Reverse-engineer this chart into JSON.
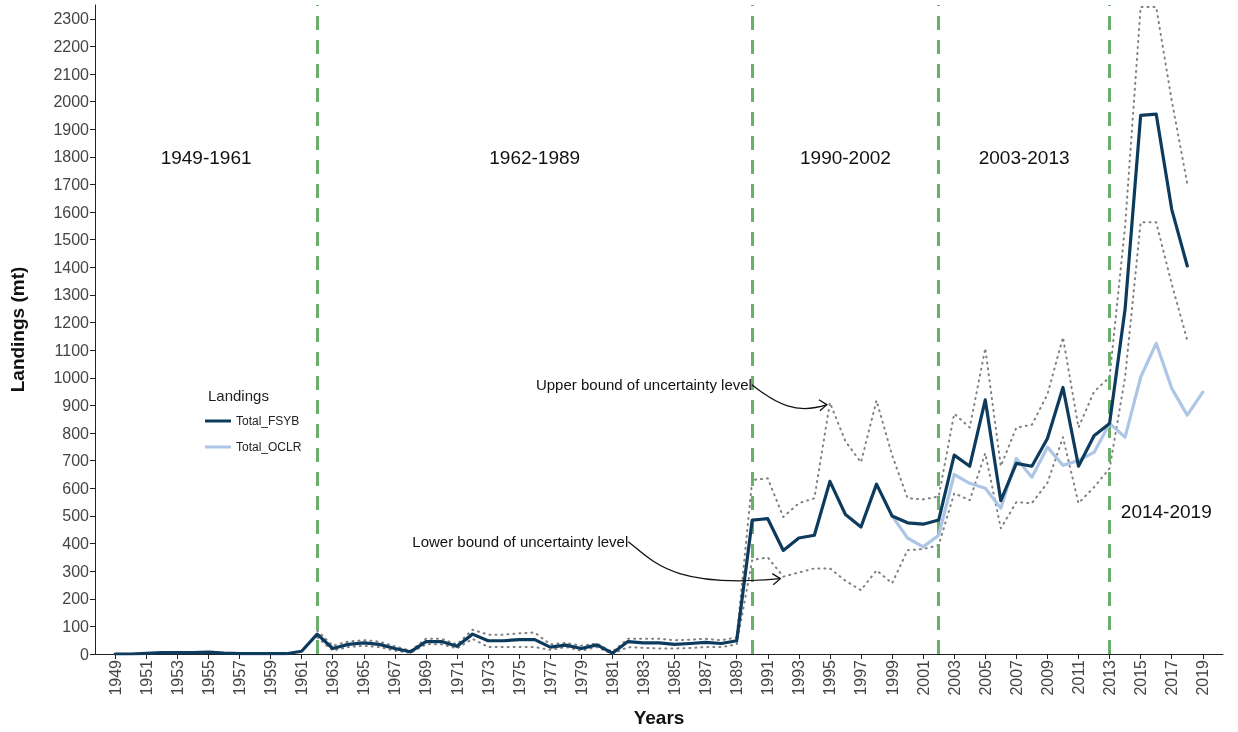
{
  "chart_data": {
    "type": "line",
    "xlabel": "Years",
    "ylabel": "Landings (mt)",
    "legend_title": "Landings",
    "x": [
      1949,
      1950,
      1951,
      1952,
      1953,
      1954,
      1955,
      1956,
      1957,
      1958,
      1959,
      1960,
      1961,
      1962,
      1963,
      1964,
      1965,
      1966,
      1967,
      1968,
      1969,
      1970,
      1971,
      1972,
      1973,
      1974,
      1975,
      1976,
      1977,
      1978,
      1979,
      1980,
      1981,
      1982,
      1983,
      1984,
      1985,
      1986,
      1987,
      1988,
      1989,
      1990,
      1991,
      1992,
      1993,
      1994,
      1995,
      1996,
      1997,
      1998,
      1999,
      2000,
      2001,
      2002,
      2003,
      2004,
      2005,
      2006,
      2007,
      2008,
      2009,
      2010,
      2011,
      2012,
      2013,
      2014,
      2015,
      2016,
      2017,
      2018
    ],
    "series": [
      {
        "name": "Total_FSYB",
        "color": "#0d3b5e",
        "line_style": "solid",
        "values": [
          0,
          0,
          2,
          5,
          5,
          5,
          7,
          3,
          1,
          1,
          1,
          1,
          10,
          72,
          20,
          35,
          40,
          35,
          20,
          8,
          45,
          45,
          28,
          72,
          48,
          48,
          52,
          52,
          25,
          32,
          20,
          33,
          3,
          45,
          40,
          40,
          35,
          38,
          42,
          38,
          48,
          485,
          490,
          375,
          420,
          430,
          625,
          505,
          460,
          615,
          500,
          475,
          470,
          485,
          720,
          680,
          920,
          555,
          690,
          680,
          780,
          965,
          680,
          790,
          835,
          1250,
          1950,
          1955,
          1610,
          1405
        ]
      },
      {
        "name": "Total_OCLR",
        "color": "#adc6e5",
        "line_style": "solid",
        "x": [
          1999,
          2000,
          2001,
          2002,
          2003,
          2004,
          2005,
          2006,
          2007,
          2008,
          2009,
          2010,
          2011,
          2012,
          2013,
          2014,
          2015,
          2016,
          2017,
          2018,
          2019
        ],
        "values": [
          500,
          420,
          388,
          430,
          650,
          618,
          600,
          528,
          708,
          640,
          749,
          683,
          701,
          730,
          835,
          785,
          1002,
          1125,
          962,
          865,
          948
        ]
      },
      {
        "color": "#7f7f7f",
        "line_style": "dotted",
        "x": [
          1962,
          1963,
          1964,
          1965,
          1966,
          1967,
          1968,
          1969,
          1970,
          1971,
          1972,
          1973,
          1974,
          1975,
          1976,
          1977,
          1978,
          1979,
          1980,
          1981,
          1982,
          1983,
          1984,
          1985,
          1986,
          1987,
          1988,
          1989,
          1990,
          1991,
          1992,
          1993,
          1994,
          1995,
          1996,
          1997,
          1998,
          1999,
          2000,
          2001,
          2002,
          2003,
          2004,
          2005,
          2006,
          2007,
          2008,
          2009,
          2010,
          2011,
          2012,
          2013,
          2014,
          2015,
          2016,
          2017,
          2018
        ],
        "values": [
          85,
          30,
          45,
          50,
          45,
          28,
          12,
          55,
          55,
          35,
          88,
          70,
          70,
          75,
          78,
          35,
          40,
          30,
          38,
          8,
          55,
          55,
          55,
          50,
          52,
          55,
          50,
          60,
          630,
          636,
          496,
          546,
          564,
          910,
          770,
          694,
          918,
          720,
          564,
          560,
          570,
          870,
          820,
          1107,
          680,
          820,
          830,
          940,
          1147,
          820,
          950,
          1002,
          1550,
          2343,
          2343,
          2004,
          1703
        ]
      },
      {
        "color": "#7f7f7f",
        "line_style": "dotted",
        "x": [
          1962,
          1963,
          1964,
          1965,
          1966,
          1967,
          1968,
          1969,
          1970,
          1971,
          1972,
          1973,
          1974,
          1975,
          1976,
          1977,
          1978,
          1979,
          1980,
          1981,
          1982,
          1983,
          1984,
          1985,
          1986,
          1987,
          1988,
          1989,
          1990,
          1991,
          1992,
          1993,
          1994,
          1995,
          1996,
          1997,
          1998,
          1999,
          2000,
          2001,
          2002,
          2003,
          2004,
          2005,
          2006,
          2007,
          2008,
          2009,
          2010,
          2011,
          2012,
          2013,
          2014,
          2015,
          2016,
          2017,
          2018
        ],
        "values": [
          60,
          12,
          25,
          30,
          25,
          12,
          4,
          35,
          35,
          20,
          55,
          25,
          25,
          25,
          25,
          15,
          25,
          12,
          25,
          0,
          25,
          22,
          20,
          20,
          22,
          25,
          25,
          35,
          340,
          350,
          280,
          295,
          310,
          310,
          265,
          231,
          303,
          256,
          376,
          380,
          394,
          582,
          557,
          727,
          455,
          550,
          546,
          620,
          785,
          546,
          604,
          672,
          1003,
          1563,
          1563,
          1340,
          1136
        ]
      }
    ],
    "xlim": [
      1947.7,
      2020.3
    ],
    "xticks": [
      1949,
      1951,
      1953,
      1955,
      1957,
      1959,
      1961,
      1963,
      1965,
      1967,
      1969,
      1971,
      1973,
      1975,
      1977,
      1979,
      1981,
      1983,
      1985,
      1987,
      1989,
      1991,
      1993,
      1995,
      1997,
      1999,
      2001,
      2003,
      2005,
      2007,
      2009,
      2011,
      2013,
      2015,
      2017,
      2019
    ],
    "ylim": [
      0,
      2350
    ],
    "yticks": [
      0,
      100,
      200,
      300,
      400,
      500,
      600,
      700,
      800,
      900,
      1000,
      1100,
      1200,
      1300,
      1400,
      1500,
      1600,
      1700,
      1800,
      1900,
      2000,
      2100,
      2200,
      2300
    ],
    "ref_lines": [
      {
        "axis": "x",
        "value": 1962,
        "color": "#6aaf6a",
        "line_style": "dashed"
      },
      {
        "axis": "x",
        "value": 1990,
        "color": "#6aaf6a",
        "line_style": "dashed"
      },
      {
        "axis": "x",
        "value": 2002,
        "color": "#6aaf6a",
        "line_style": "dashed"
      },
      {
        "axis": "x",
        "value": 2013,
        "color": "#6aaf6a",
        "line_style": "dashed"
      }
    ],
    "annotations": [
      "1949-1961",
      "1962-1989",
      "1990-2002",
      "2003-2013",
      "2014-2019",
      {
        "text": "Upper bound of uncertainty level",
        "x": 1995,
        "y": 910
      },
      {
        "text": "Lower bound of uncertainty level",
        "x": 1992,
        "y": 280
      }
    ],
    "grid": false,
    "legend": "left",
    "marker": "none"
  }
}
